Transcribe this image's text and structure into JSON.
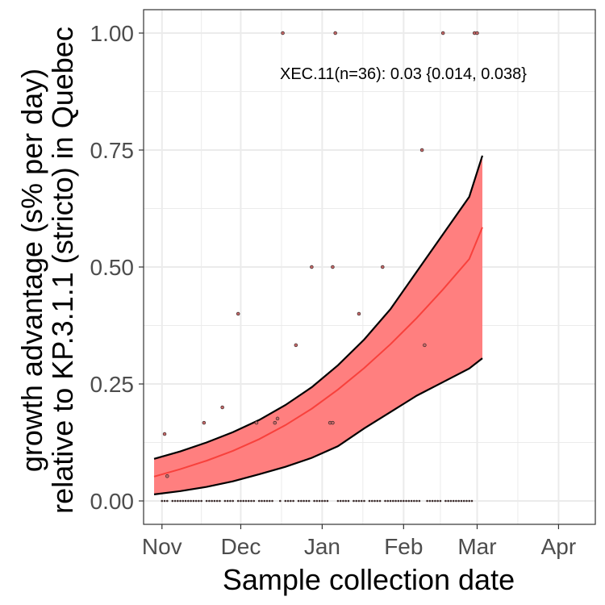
{
  "chart_data": {
    "type": "line",
    "title": "",
    "xlabel": "Sample collection date",
    "ylabel_line1": "growth advantage (s% per day)",
    "ylabel_line2": "relative to KP.3.1.1 (stricto) in Quebec",
    "annotation": "XEC.11(n=36): 0.03 {0.014, 0.038}",
    "xlim": [
      "2024-10-25",
      "2025-04-15"
    ],
    "ylim": [
      -0.05,
      1.05
    ],
    "x_ticks": [
      {
        "date": "2024-11-01",
        "label": "Nov"
      },
      {
        "date": "2024-12-01",
        "label": "Dec"
      },
      {
        "date": "2025-01-01",
        "label": "Jan"
      },
      {
        "date": "2025-02-01",
        "label": "Feb"
      },
      {
        "date": "2025-03-01",
        "label": "Mar"
      },
      {
        "date": "2025-04-01",
        "label": "Apr"
      }
    ],
    "y_ticks": [
      {
        "value": 0,
        "label": "0.00"
      },
      {
        "value": 0.25,
        "label": "0.25"
      },
      {
        "value": 0.5,
        "label": "0.50"
      },
      {
        "value": 0.75,
        "label": "0.75"
      },
      {
        "value": 1.0,
        "label": "1.00"
      }
    ],
    "grid": true,
    "colors": {
      "fit_line": "#f8413c",
      "band_fill": "#ff7f7f",
      "band_edge": "#000000",
      "points": "#3a2a2a",
      "panel_border": "#333333",
      "grid": "#ebebeb"
    },
    "series": [
      {
        "role": "fit",
        "x": [
          "2024-10-29",
          "2024-11-08",
          "2024-11-18",
          "2024-11-28",
          "2024-12-08",
          "2024-12-18",
          "2024-12-28",
          "2025-01-07",
          "2025-01-17",
          "2025-01-27",
          "2025-02-06",
          "2025-02-16",
          "2025-02-26",
          "2025-03-03"
        ],
        "y": [
          0.052,
          0.068,
          0.086,
          0.107,
          0.132,
          0.162,
          0.197,
          0.238,
          0.284,
          0.335,
          0.391,
          0.452,
          0.517,
          0.585
        ]
      },
      {
        "role": "upper",
        "x": [
          "2024-10-29",
          "2024-11-08",
          "2024-11-18",
          "2024-11-28",
          "2024-12-08",
          "2024-12-18",
          "2024-12-28",
          "2025-01-07",
          "2025-01-17",
          "2025-01-27",
          "2025-02-06",
          "2025-02-16",
          "2025-02-26",
          "2025-03-03"
        ],
        "y": [
          0.09,
          0.106,
          0.125,
          0.147,
          0.173,
          0.205,
          0.243,
          0.29,
          0.345,
          0.41,
          0.49,
          0.57,
          0.65,
          0.738
        ]
      },
      {
        "role": "lower",
        "x": [
          "2024-10-29",
          "2024-11-08",
          "2024-11-18",
          "2024-11-28",
          "2024-12-08",
          "2024-12-18",
          "2024-12-28",
          "2025-01-07",
          "2025-01-17",
          "2025-01-27",
          "2025-02-06",
          "2025-02-16",
          "2025-02-26",
          "2025-03-03"
        ],
        "y": [
          0.014,
          0.021,
          0.03,
          0.042,
          0.057,
          0.073,
          0.092,
          0.117,
          0.155,
          0.19,
          0.225,
          0.254,
          0.283,
          0.305
        ]
      }
    ],
    "points": {
      "nonzero": [
        {
          "x": "2024-11-02",
          "y": 0.143
        },
        {
          "x": "2024-11-03",
          "y": 0.053
        },
        {
          "x": "2024-11-17",
          "y": 0.167
        },
        {
          "x": "2024-11-24",
          "y": 0.2
        },
        {
          "x": "2024-11-30",
          "y": 0.4
        },
        {
          "x": "2024-12-07",
          "y": 0.167
        },
        {
          "x": "2024-12-14",
          "y": 0.167
        },
        {
          "x": "2024-12-15",
          "y": 0.176
        },
        {
          "x": "2024-12-17",
          "y": 1.0
        },
        {
          "x": "2024-12-22",
          "y": 0.333
        },
        {
          "x": "2024-12-28",
          "y": 0.5
        },
        {
          "x": "2025-01-04",
          "y": 0.167
        },
        {
          "x": "2025-01-05",
          "y": 0.5
        },
        {
          "x": "2025-01-05",
          "y": 0.167
        },
        {
          "x": "2025-01-06",
          "y": 1.0
        },
        {
          "x": "2025-01-15",
          "y": 0.4
        },
        {
          "x": "2025-01-24",
          "y": 0.5
        },
        {
          "x": "2025-02-08",
          "y": 0.75
        },
        {
          "x": "2025-02-09",
          "y": 0.333
        },
        {
          "x": "2025-02-16",
          "y": 1.0
        },
        {
          "x": "2025-02-28",
          "y": 1.0
        },
        {
          "x": "2025-03-01",
          "y": 1.0
        }
      ],
      "zero_dates": [
        "2024-11-01",
        "2024-11-02",
        "2024-11-03",
        "2024-11-05",
        "2024-11-06",
        "2024-11-07",
        "2024-11-08",
        "2024-11-09",
        "2024-11-10",
        "2024-11-11",
        "2024-11-12",
        "2024-11-13",
        "2024-11-14",
        "2024-11-15",
        "2024-11-16",
        "2024-11-18",
        "2024-11-19",
        "2024-11-20",
        "2024-11-21",
        "2024-11-22",
        "2024-11-23",
        "2024-11-25",
        "2024-11-26",
        "2024-11-27",
        "2024-11-28",
        "2024-11-30",
        "2024-12-01",
        "2024-12-02",
        "2024-12-03",
        "2024-12-04",
        "2024-12-05",
        "2024-12-06",
        "2024-12-08",
        "2024-12-09",
        "2024-12-10",
        "2024-12-11",
        "2024-12-12",
        "2024-12-13",
        "2024-12-16",
        "2024-12-18",
        "2024-12-19",
        "2024-12-20",
        "2024-12-21",
        "2024-12-23",
        "2024-12-24",
        "2024-12-25",
        "2024-12-26",
        "2024-12-27",
        "2024-12-29",
        "2024-12-30",
        "2024-12-31",
        "2025-01-01",
        "2025-01-02",
        "2025-01-03",
        "2025-01-07",
        "2025-01-08",
        "2025-01-09",
        "2025-01-10",
        "2025-01-11",
        "2025-01-13",
        "2025-01-14",
        "2025-01-15",
        "2025-01-16",
        "2025-01-17",
        "2025-01-19",
        "2025-01-20",
        "2025-01-21",
        "2025-01-22",
        "2025-01-23",
        "2025-01-25",
        "2025-01-26",
        "2025-01-27",
        "2025-01-28",
        "2025-01-29",
        "2025-01-30",
        "2025-01-31",
        "2025-02-01",
        "2025-02-02",
        "2025-02-03",
        "2025-02-04",
        "2025-02-05",
        "2025-02-06",
        "2025-02-07",
        "2025-02-10",
        "2025-02-11",
        "2025-02-12",
        "2025-02-13",
        "2025-02-14",
        "2025-02-15",
        "2025-02-17",
        "2025-02-18",
        "2025-02-19",
        "2025-02-20",
        "2025-02-21",
        "2025-02-22",
        "2025-02-23",
        "2025-02-24",
        "2025-02-25",
        "2025-02-26",
        "2025-02-27"
      ]
    }
  }
}
